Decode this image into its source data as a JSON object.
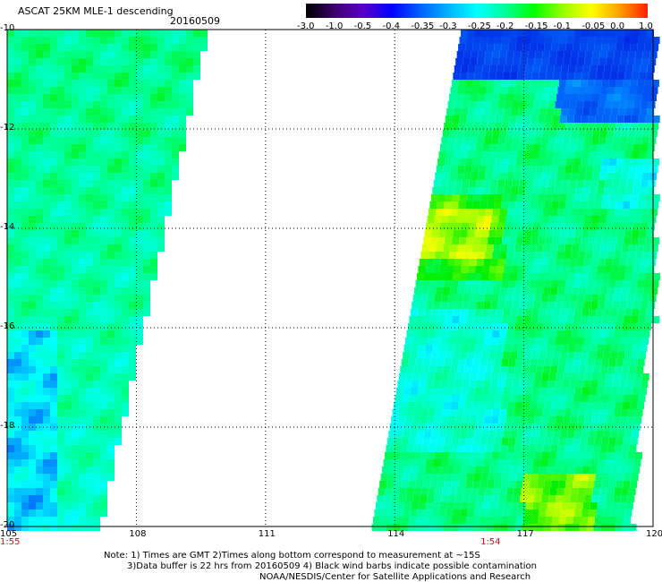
{
  "header": {
    "title": "ASCAT 25KM MLE-1 descending",
    "date": "20160509"
  },
  "colorbar": {
    "labels": [
      "-3.0",
      "-1.0",
      "-0.5",
      "-0.4",
      "-0.35",
      "-0.3",
      "-0.25",
      "-0.2",
      "-0.15",
      "-0.1",
      "-0.05",
      "0.0",
      "1.0"
    ],
    "colors": [
      "#000000",
      "#3c006e",
      "#5a00c8",
      "#0000ff",
      "#0060ff",
      "#00b4ff",
      "#00ffff",
      "#00ff96",
      "#00ff00",
      "#96ff00",
      "#ffff00",
      "#ffa000",
      "#ff1e00"
    ]
  },
  "axes": {
    "lon_ticks": [
      "105",
      "108",
      "111",
      "114",
      "117",
      "120"
    ],
    "lat_ticks": [
      "-10",
      "-12",
      "-14",
      "-16",
      "-18",
      "-20"
    ],
    "lon_range": [
      105,
      120
    ],
    "lat_range": [
      -10,
      -20
    ]
  },
  "pass_times": [
    {
      "label": "1:55",
      "lon": 105
    },
    {
      "label": "1:54",
      "lon": 116.2
    }
  ],
  "footer": {
    "line1": "Note: 1) Times are GMT 2)Times along bottom correspond to measurement at ~15S",
    "line2": "3)Data buffer is 22 hrs from 20160509 4) Black wind barbs indicate possible contamination",
    "line3": "NOAA/NESDIS/Center for Satellite Applications and Research"
  }
}
